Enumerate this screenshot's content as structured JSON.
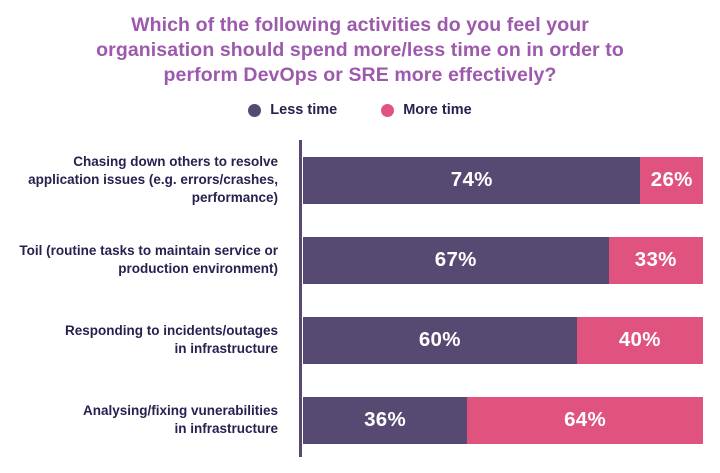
{
  "chart_data": {
    "type": "bar",
    "orientation": "horizontal",
    "stacked": true,
    "title": "Which of the following activities do you feel your\norganisation should spend more/less time on in order to\nperform DevOps or SRE more effectively?",
    "categories": [
      "Chasing down others to resolve\napplication issues (e.g. errors/crashes,\nperformance)",
      "Toil (routine tasks to maintain service or\nproduction environment)",
      "Responding to incidents/outages\nin infrastructure",
      "Analysing/fixing vunerabilities\nin infrastructure"
    ],
    "series": [
      {
        "name": "Less time",
        "color": "#564a73",
        "values": [
          74,
          67,
          60,
          36
        ]
      },
      {
        "name": "More time",
        "color": "#e0537f",
        "values": [
          26,
          33,
          40,
          64
        ]
      }
    ],
    "value_suffix": "%",
    "value_label_color": "#ffffff",
    "axis_line_color": "#564a73",
    "title_color": "#9d59ac",
    "label_color": "#262250",
    "legend_position": "top",
    "grid": false,
    "xlim": [
      0,
      100
    ]
  }
}
